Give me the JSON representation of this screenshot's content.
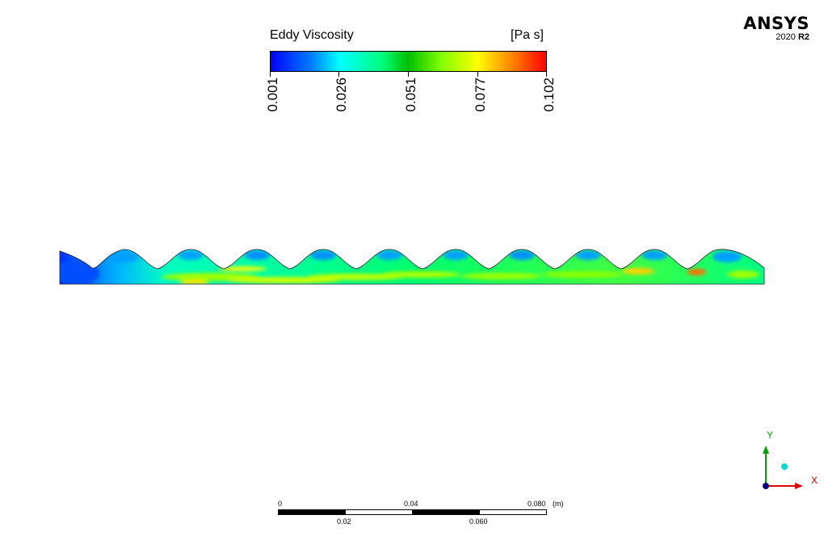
{
  "legend": {
    "title": "Eddy Viscosity",
    "units": "[Pa s]",
    "ticks": [
      "0.001",
      "0.026",
      "0.051",
      "0.077",
      "0.102"
    ]
  },
  "brand": {
    "name": "ANSYS",
    "version_year": "2020",
    "version_release": "R2"
  },
  "scale_bar": {
    "top_labels": [
      "0",
      "0.04",
      "0.080"
    ],
    "unit": "(m)",
    "bottom_labels": [
      "0.02",
      "0.060"
    ]
  },
  "axes": {
    "y_label": "Y",
    "x_label": "X"
  },
  "colors": {
    "low": "#0000ff",
    "mid": "#00ff40",
    "high": "#ff0000",
    "y_axis": "#00a000",
    "x_axis": "#e00000"
  }
}
